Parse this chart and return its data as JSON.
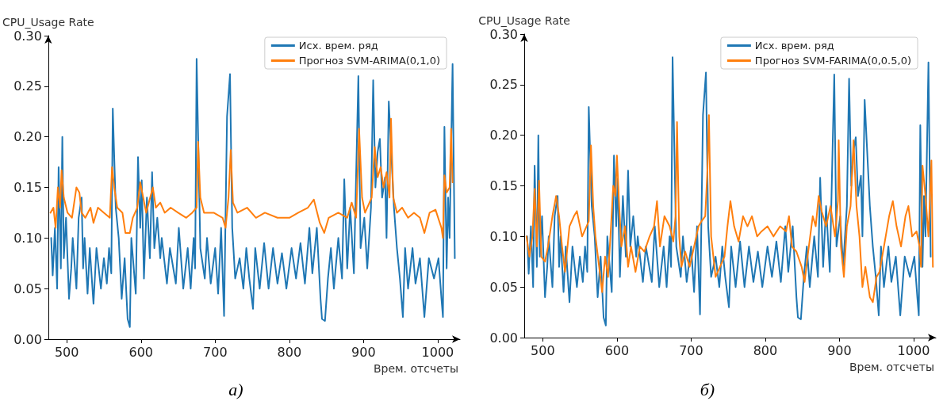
{
  "chart_data": [
    {
      "type": "line",
      "ylabel": "CPU_Usage Rate",
      "xlabel": "Врем. отсчеты",
      "annotations": [
        "а)"
      ],
      "legend": "top right",
      "marker": "none",
      "grid": false,
      "line_style": "solid",
      "xlim": [
        475,
        1030
      ],
      "xticks": [
        500,
        600,
        700,
        800,
        900,
        1000
      ],
      "ylim": [
        0,
        0.3
      ],
      "yticks": [
        {
          "value": 0,
          "label": "0.00"
        },
        {
          "value": 0.05,
          "label": "0.05"
        },
        {
          "value": 0.1,
          "label": "0.10"
        },
        {
          "value": 0.15,
          "label": "0.15"
        },
        {
          "value": 0.2,
          "label": "0.20"
        },
        {
          "value": 0.25,
          "label": "0.25"
        },
        {
          "value": 0.3,
          "label": "0.30"
        }
      ],
      "series": [
        {
          "name": "Исх. врем. ряд",
          "color": "#1f77b4",
          "x": [
            479,
            481,
            484,
            487,
            489,
            492,
            494,
            496,
            499,
            503,
            506,
            508,
            513,
            516,
            520,
            522,
            524,
            528,
            531,
            536,
            540,
            546,
            550,
            554,
            557,
            560,
            562,
            566,
            570,
            574,
            578,
            582,
            585,
            587,
            593,
            596,
            599,
            601,
            604,
            608,
            612,
            615,
            618,
            622,
            626,
            628,
            635,
            639,
            647,
            651,
            657,
            663,
            667,
            671,
            673,
            675,
            680,
            686,
            689,
            694,
            700,
            704,
            708,
            712,
            716,
            720,
            723,
            727,
            733,
            738,
            742,
            746,
            751,
            754,
            760,
            766,
            772,
            778,
            784,
            790,
            796,
            803,
            809,
            815,
            821,
            827,
            831,
            837,
            842,
            844,
            848,
            852,
            856,
            860,
            866,
            871,
            874,
            878,
            882,
            887,
            893,
            896,
            901,
            905,
            910,
            913,
            916,
            919,
            922,
            925,
            929,
            931,
            934,
            941,
            945,
            949,
            953,
            956,
            960,
            966,
            970,
            976,
            982,
            988,
            995,
            1001,
            1005,
            1007,
            1009,
            1012,
            1014,
            1016,
            1020,
            1023
          ],
          "values": [
            0.1,
            0.063,
            0.11,
            0.05,
            0.17,
            0.07,
            0.2,
            0.08,
            0.12,
            0.04,
            0.07,
            0.1,
            0.05,
            0.12,
            0.14,
            0.07,
            0.1,
            0.045,
            0.09,
            0.035,
            0.09,
            0.05,
            0.08,
            0.055,
            0.09,
            0.065,
            0.228,
            0.13,
            0.1,
            0.04,
            0.08,
            0.02,
            0.012,
            0.1,
            0.045,
            0.18,
            0.11,
            0.157,
            0.06,
            0.14,
            0.08,
            0.165,
            0.09,
            0.12,
            0.08,
            0.1,
            0.055,
            0.09,
            0.055,
            0.11,
            0.05,
            0.09,
            0.05,
            0.1,
            0.07,
            0.277,
            0.09,
            0.06,
            0.1,
            0.055,
            0.09,
            0.045,
            0.11,
            0.023,
            0.22,
            0.262,
            0.11,
            0.06,
            0.08,
            0.05,
            0.09,
            0.06,
            0.03,
            0.09,
            0.05,
            0.095,
            0.05,
            0.09,
            0.055,
            0.085,
            0.05,
            0.09,
            0.06,
            0.095,
            0.055,
            0.11,
            0.065,
            0.11,
            0.04,
            0.02,
            0.018,
            0.06,
            0.09,
            0.05,
            0.1,
            0.06,
            0.158,
            0.07,
            0.13,
            0.065,
            0.26,
            0.09,
            0.12,
            0.07,
            0.13,
            0.256,
            0.15,
            0.185,
            0.198,
            0.14,
            0.16,
            0.1,
            0.235,
            0.13,
            0.09,
            0.06,
            0.022,
            0.09,
            0.05,
            0.09,
            0.055,
            0.08,
            0.022,
            0.08,
            0.06,
            0.08,
            0.04,
            0.022,
            0.21,
            0.07,
            0.14,
            0.1,
            0.272,
            0.08
          ]
        },
        {
          "name": "Прогноз SVM-ARIMA(0,1,0)",
          "color": "#ff7f0e",
          "x": [
            478,
            482,
            485,
            488,
            491,
            493,
            496,
            501,
            507,
            513,
            517,
            520,
            525,
            532,
            536,
            542,
            550,
            558,
            561,
            564,
            568,
            575,
            579,
            585,
            589,
            595,
            599,
            603,
            607,
            616,
            620,
            626,
            632,
            640,
            650,
            661,
            669,
            675,
            677,
            680,
            685,
            698,
            710,
            714,
            718,
            721,
            724,
            730,
            743,
            755,
            767,
            784,
            800,
            812,
            825,
            833,
            841,
            847,
            853,
            866,
            878,
            884,
            890,
            894,
            898,
            902,
            911,
            915,
            919,
            923,
            927,
            931,
            935,
            937,
            940,
            945,
            952,
            960,
            968,
            976,
            982,
            989,
            997,
            1005,
            1007,
            1009,
            1012,
            1016,
            1018,
            1020
          ],
          "values": [
            0.125,
            0.13,
            0.11,
            0.15,
            0.13,
            0.167,
            0.14,
            0.125,
            0.12,
            0.15,
            0.145,
            0.125,
            0.12,
            0.13,
            0.115,
            0.13,
            0.125,
            0.12,
            0.17,
            0.15,
            0.13,
            0.125,
            0.105,
            0.105,
            0.12,
            0.13,
            0.155,
            0.14,
            0.125,
            0.15,
            0.13,
            0.135,
            0.125,
            0.13,
            0.125,
            0.12,
            0.125,
            0.13,
            0.195,
            0.14,
            0.125,
            0.125,
            0.12,
            0.11,
            0.14,
            0.187,
            0.135,
            0.125,
            0.13,
            0.12,
            0.125,
            0.12,
            0.12,
            0.125,
            0.13,
            0.138,
            0.115,
            0.105,
            0.12,
            0.125,
            0.12,
            0.135,
            0.12,
            0.208,
            0.14,
            0.125,
            0.14,
            0.19,
            0.16,
            0.17,
            0.15,
            0.165,
            0.14,
            0.218,
            0.14,
            0.125,
            0.13,
            0.12,
            0.125,
            0.12,
            0.105,
            0.125,
            0.128,
            0.11,
            0.1,
            0.162,
            0.145,
            0.15,
            0.208,
            0.155
          ]
        }
      ]
    },
    {
      "type": "line",
      "ylabel": "CPU_Usage Rate",
      "xlabel": "Врем. отсчеты",
      "annotations": [
        "б)"
      ],
      "legend": "top right",
      "marker": "none",
      "grid": false,
      "line_style": "solid",
      "xlim": [
        475,
        1030
      ],
      "xticks": [
        500,
        600,
        700,
        800,
        900,
        1000
      ],
      "ylim": [
        0,
        0.3
      ],
      "yticks": [
        {
          "value": 0,
          "label": "0.00"
        },
        {
          "value": 0.05,
          "label": "0.05"
        },
        {
          "value": 0.1,
          "label": "0.10"
        },
        {
          "value": 0.15,
          "label": "0.15"
        },
        {
          "value": 0.2,
          "label": "0.20"
        },
        {
          "value": 0.25,
          "label": "0.25"
        },
        {
          "value": 0.3,
          "label": "0.30"
        }
      ],
      "series": [
        {
          "name": "Исх. врем. ряд",
          "color": "#1f77b4",
          "x": [
            479,
            481,
            484,
            487,
            489,
            492,
            494,
            496,
            499,
            503,
            506,
            508,
            513,
            516,
            520,
            522,
            524,
            528,
            531,
            536,
            540,
            546,
            550,
            554,
            557,
            560,
            562,
            566,
            570,
            574,
            578,
            582,
            585,
            587,
            593,
            596,
            599,
            601,
            604,
            608,
            612,
            615,
            618,
            622,
            626,
            628,
            635,
            639,
            647,
            651,
            657,
            663,
            667,
            671,
            673,
            675,
            680,
            686,
            689,
            694,
            700,
            704,
            708,
            712,
            716,
            720,
            723,
            727,
            733,
            738,
            742,
            746,
            751,
            754,
            760,
            766,
            772,
            778,
            784,
            790,
            796,
            803,
            809,
            815,
            821,
            827,
            831,
            837,
            842,
            844,
            848,
            852,
            856,
            860,
            866,
            871,
            874,
            878,
            882,
            887,
            893,
            896,
            901,
            905,
            910,
            913,
            916,
            919,
            922,
            925,
            929,
            931,
            934,
            941,
            945,
            949,
            953,
            956,
            960,
            966,
            970,
            976,
            982,
            988,
            995,
            1001,
            1005,
            1007,
            1009,
            1012,
            1014,
            1016,
            1020,
            1023
          ],
          "values": [
            0.1,
            0.063,
            0.11,
            0.05,
            0.17,
            0.07,
            0.2,
            0.08,
            0.12,
            0.04,
            0.07,
            0.1,
            0.05,
            0.12,
            0.14,
            0.07,
            0.1,
            0.045,
            0.09,
            0.035,
            0.09,
            0.05,
            0.08,
            0.055,
            0.09,
            0.065,
            0.228,
            0.13,
            0.1,
            0.04,
            0.08,
            0.02,
            0.012,
            0.1,
            0.045,
            0.18,
            0.11,
            0.157,
            0.06,
            0.14,
            0.08,
            0.165,
            0.09,
            0.12,
            0.08,
            0.1,
            0.055,
            0.09,
            0.055,
            0.11,
            0.05,
            0.09,
            0.05,
            0.1,
            0.07,
            0.277,
            0.09,
            0.06,
            0.1,
            0.055,
            0.09,
            0.045,
            0.11,
            0.023,
            0.22,
            0.262,
            0.11,
            0.06,
            0.08,
            0.05,
            0.09,
            0.06,
            0.03,
            0.09,
            0.05,
            0.095,
            0.05,
            0.09,
            0.055,
            0.085,
            0.05,
            0.09,
            0.06,
            0.095,
            0.055,
            0.11,
            0.065,
            0.11,
            0.04,
            0.02,
            0.018,
            0.06,
            0.09,
            0.05,
            0.1,
            0.06,
            0.158,
            0.07,
            0.13,
            0.065,
            0.26,
            0.09,
            0.12,
            0.07,
            0.13,
            0.256,
            0.15,
            0.185,
            0.198,
            0.14,
            0.16,
            0.1,
            0.235,
            0.13,
            0.09,
            0.06,
            0.022,
            0.09,
            0.05,
            0.09,
            0.055,
            0.08,
            0.022,
            0.08,
            0.06,
            0.08,
            0.04,
            0.022,
            0.21,
            0.07,
            0.14,
            0.1,
            0.272,
            0.08
          ]
        },
        {
          "name": "Прогноз SVM-FARIMA(0,0.5,0)",
          "color": "#ff7f0e",
          "x": [
            478,
            482,
            486,
            489,
            492,
            495,
            498,
            503,
            507,
            513,
            518,
            522,
            526,
            530,
            536,
            542,
            546,
            553,
            559,
            562,
            565,
            568,
            571,
            576,
            580,
            584,
            588,
            592,
            595,
            598,
            600,
            603,
            606,
            611,
            615,
            619,
            625,
            631,
            637,
            644,
            650,
            654,
            658,
            664,
            671,
            676,
            679,
            681,
            684,
            687,
            692,
            698,
            704,
            710,
            714,
            719,
            722,
            724,
            727,
            733,
            739,
            745,
            749,
            753,
            758,
            764,
            770,
            776,
            782,
            789,
            795,
            803,
            811,
            820,
            828,
            832,
            836,
            842,
            849,
            853,
            857,
            864,
            868,
            872,
            876,
            882,
            888,
            894,
            898,
            899,
            902,
            906,
            910,
            915,
            919,
            923,
            927,
            931,
            935,
            941,
            945,
            950,
            954,
            960,
            967,
            972,
            977,
            983,
            989,
            993,
            998,
            1004,
            1008,
            1010,
            1012,
            1016,
            1020,
            1024,
            1026
          ],
          "values": [
            0.1,
            0.08,
            0.1,
            0.147,
            0.09,
            0.155,
            0.08,
            0.075,
            0.09,
            0.12,
            0.14,
            0.12,
            0.09,
            0.065,
            0.11,
            0.12,
            0.125,
            0.1,
            0.11,
            0.115,
            0.19,
            0.13,
            0.1,
            0.07,
            0.045,
            0.08,
            0.06,
            0.11,
            0.15,
            0.14,
            0.18,
            0.13,
            0.09,
            0.11,
            0.07,
            0.09,
            0.065,
            0.09,
            0.085,
            0.1,
            0.11,
            0.135,
            0.09,
            0.12,
            0.11,
            0.095,
            0.12,
            0.213,
            0.1,
            0.07,
            0.085,
            0.07,
            0.09,
            0.11,
            0.115,
            0.12,
            0.165,
            0.22,
            0.1,
            0.06,
            0.07,
            0.08,
            0.11,
            0.135,
            0.11,
            0.095,
            0.12,
            0.11,
            0.12,
            0.1,
            0.105,
            0.11,
            0.1,
            0.11,
            0.105,
            0.12,
            0.09,
            0.085,
            0.07,
            0.055,
            0.08,
            0.12,
            0.11,
            0.14,
            0.125,
            0.11,
            0.13,
            0.1,
            0.135,
            0.195,
            0.09,
            0.06,
            0.11,
            0.13,
            0.195,
            0.13,
            0.1,
            0.05,
            0.07,
            0.04,
            0.035,
            0.06,
            0.065,
            0.09,
            0.12,
            0.135,
            0.11,
            0.09,
            0.12,
            0.13,
            0.1,
            0.105,
            0.09,
            0.07,
            0.17,
            0.14,
            0.1,
            0.175,
            0.07
          ]
        }
      ]
    }
  ]
}
